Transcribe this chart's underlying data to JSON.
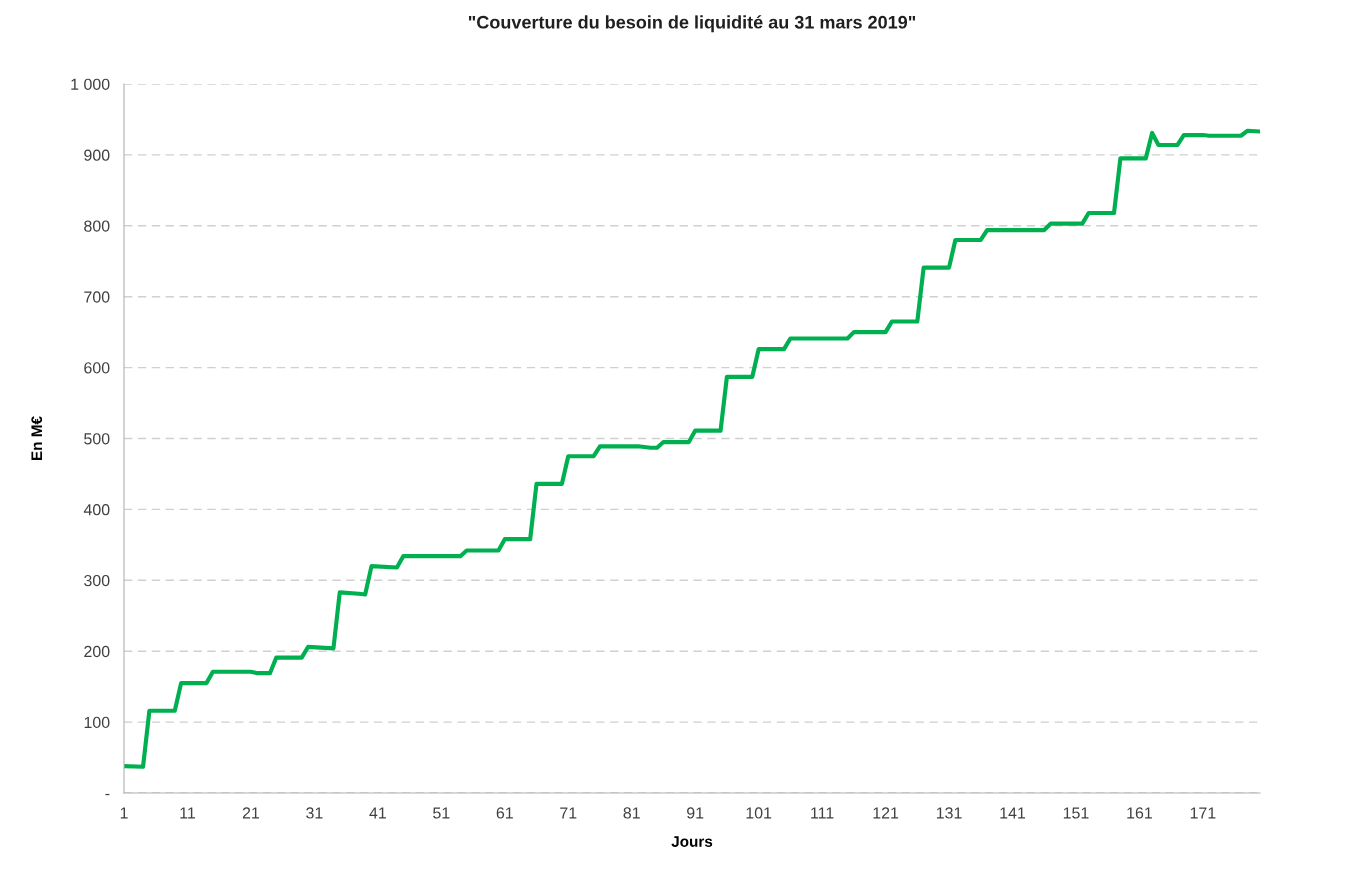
{
  "chart_data": {
    "type": "line",
    "title": "\"Couverture du besoin de liquidité au 31 mars 2019\"",
    "xlabel": "Jours",
    "ylabel": "En M€",
    "x": [
      1,
      4,
      5,
      9,
      10,
      14,
      15,
      21,
      22,
      24,
      25,
      29,
      30,
      34,
      35,
      38,
      39,
      40,
      44,
      45,
      54,
      55,
      60,
      61,
      65,
      66,
      70,
      71,
      75,
      76,
      82,
      84,
      85,
      86,
      90,
      91,
      95,
      96,
      100,
      101,
      105,
      106,
      115,
      116,
      121,
      122,
      126,
      127,
      131,
      132,
      136,
      137,
      146,
      147,
      152,
      153,
      157,
      158,
      162,
      163,
      164,
      167,
      168,
      171,
      172,
      177,
      178,
      180
    ],
    "series": [
      {
        "color": "#00b050",
        "values": [
          38,
          37,
          116,
          116,
          155,
          155,
          171,
          171,
          169,
          169,
          191,
          191,
          206,
          204,
          283,
          281,
          280,
          320,
          318,
          334,
          334,
          342,
          342,
          358,
          358,
          436,
          436,
          475,
          475,
          489,
          489,
          487,
          487,
          495,
          495,
          511,
          511,
          587,
          587,
          626,
          626,
          641,
          641,
          650,
          650,
          665,
          665,
          741,
          741,
          780,
          780,
          794,
          794,
          803,
          803,
          818,
          818,
          895,
          895,
          931,
          914,
          914,
          928,
          928,
          927,
          927,
          934,
          933
        ]
      }
    ],
    "xlim": [
      1,
      180
    ],
    "xticks": [
      1,
      11,
      21,
      31,
      41,
      51,
      61,
      71,
      81,
      91,
      101,
      111,
      121,
      131,
      141,
      151,
      161,
      171
    ],
    "ylim": [
      0,
      1000
    ],
    "yticks": [
      {
        "value": 0,
        "label": "-"
      },
      100,
      200,
      300,
      400,
      500,
      600,
      700,
      800,
      900,
      {
        "value": 1000,
        "label": "1 000"
      }
    ],
    "grid": "y",
    "legend": false,
    "marker": "none",
    "line_style": "solid"
  }
}
